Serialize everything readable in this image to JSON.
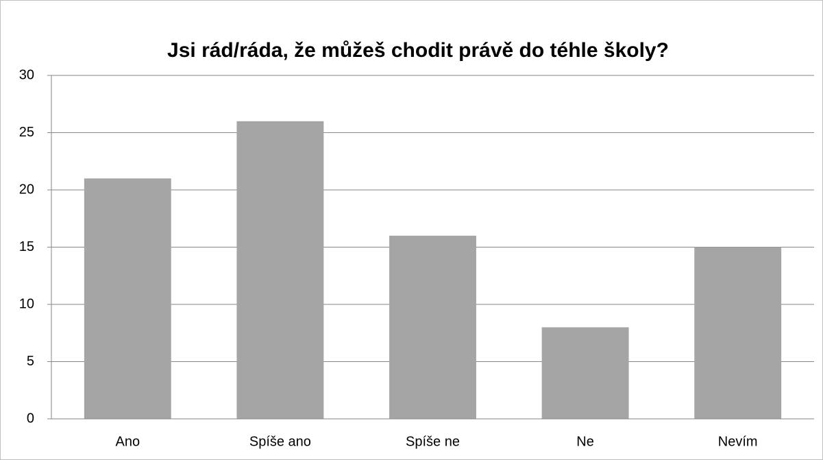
{
  "chart_data": {
    "type": "bar",
    "title": "Jsi rád/ráda, že můžeš chodit právě do téhle školy?",
    "categories": [
      "Ano",
      "Spíše ano",
      "Spíše ne",
      "Ne",
      "Nevím"
    ],
    "values": [
      21,
      26,
      16,
      8,
      15
    ],
    "color": "#a5a5a5",
    "ylim": [
      0,
      30
    ],
    "yticks": [
      0,
      5,
      10,
      15,
      20,
      25,
      30
    ],
    "grid": true
  }
}
